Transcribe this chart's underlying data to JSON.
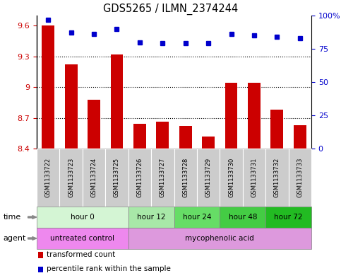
{
  "title": "GDS5265 / ILMN_2374244",
  "samples": [
    "GSM1133722",
    "GSM1133723",
    "GSM1133724",
    "GSM1133725",
    "GSM1133726",
    "GSM1133727",
    "GSM1133728",
    "GSM1133729",
    "GSM1133730",
    "GSM1133731",
    "GSM1133732",
    "GSM1133733"
  ],
  "bar_values": [
    9.6,
    9.22,
    8.88,
    9.32,
    8.64,
    8.66,
    8.62,
    8.52,
    9.04,
    9.04,
    8.78,
    8.63
  ],
  "percentile_values": [
    97,
    87,
    86,
    90,
    80,
    79,
    79,
    79,
    86,
    85,
    84,
    83
  ],
  "ylim_left": [
    8.4,
    9.7
  ],
  "ylim_right": [
    0,
    100
  ],
  "yticks_left": [
    8.4,
    8.7,
    9.0,
    9.3,
    9.6
  ],
  "yticks_right": [
    0,
    25,
    50,
    75,
    100
  ],
  "ytick_labels_left": [
    "8.4",
    "8.7",
    "9",
    "9.3",
    "9.6"
  ],
  "ytick_labels_right": [
    "0",
    "25",
    "50",
    "75",
    "100%"
  ],
  "bar_color": "#cc0000",
  "dot_color": "#0000cc",
  "grid_color": "#000000",
  "time_groups": [
    {
      "label": "hour 0",
      "start": 0,
      "end": 4,
      "color": "#d4f5d4"
    },
    {
      "label": "hour 12",
      "start": 4,
      "end": 6,
      "color": "#a8e8a8"
    },
    {
      "label": "hour 24",
      "start": 6,
      "end": 8,
      "color": "#66dd66"
    },
    {
      "label": "hour 48",
      "start": 8,
      "end": 10,
      "color": "#44cc44"
    },
    {
      "label": "hour 72",
      "start": 10,
      "end": 12,
      "color": "#22bb22"
    }
  ],
  "agent_groups": [
    {
      "label": "untreated control",
      "start": 0,
      "end": 4,
      "color": "#ee88ee"
    },
    {
      "label": "mycophenolic acid",
      "start": 4,
      "end": 12,
      "color": "#dd99dd"
    }
  ],
  "legend_bar_label": "transformed count",
  "legend_dot_label": "percentile rank within the sample",
  "sample_bg_color": "#cccccc",
  "bg_color": "#ffffff"
}
